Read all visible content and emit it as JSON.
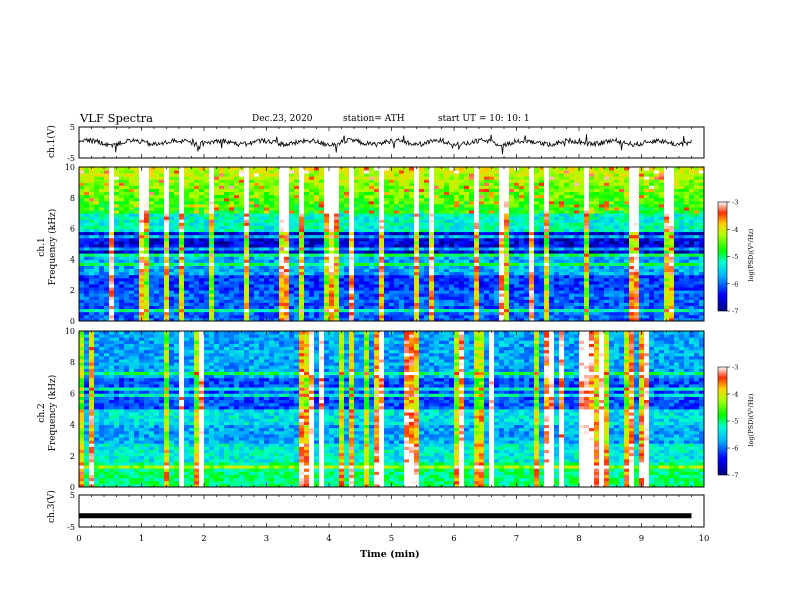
{
  "header": {
    "title": "VLF Spectra",
    "date": "Dec.23, 2020",
    "station": "station= ATH",
    "start": "start  UT =   10: 10: 1"
  },
  "chart_data": [
    {
      "type": "line",
      "ylabel": "ch.1(V)",
      "ylim": [
        -5,
        5
      ],
      "yticks": [
        "5",
        "-5"
      ],
      "xlim": [
        0,
        10
      ],
      "note": "noisy waveform around 0 V with spikes"
    },
    {
      "type": "heatmap",
      "ylabel": "ch.1\nFrequency (kHz)",
      "ylim": [
        0,
        10
      ],
      "yticks": [
        "0",
        "2",
        "4",
        "6",
        "8",
        "10"
      ],
      "xlim": [
        0,
        10
      ],
      "colorbar": {
        "label": "log(PSD)(V²/Hz)",
        "ticks": [
          "-3",
          "-4",
          "-5",
          "-6",
          "-7"
        ],
        "range": [
          -7,
          -3
        ]
      }
    },
    {
      "type": "heatmap",
      "ylabel": "ch.2\nFrequency (kHz)",
      "ylim": [
        0,
        10
      ],
      "yticks": [
        "0",
        "2",
        "4",
        "6",
        "8",
        "10"
      ],
      "xlim": [
        0,
        10
      ],
      "colorbar": {
        "label": "log(PSD)(V²/Hz)",
        "ticks": [
          "-3",
          "-4",
          "-5",
          "-6",
          "-7"
        ],
        "range": [
          -7,
          -3
        ]
      }
    },
    {
      "type": "line",
      "ylabel": "ch.3(V)",
      "ylim": [
        -5,
        5
      ],
      "yticks": [
        "5",
        "-5"
      ],
      "xlim": [
        0,
        10
      ],
      "xticks": [
        "0",
        "1",
        "2",
        "3",
        "4",
        "5",
        "6",
        "7",
        "8",
        "9",
        "10"
      ],
      "xlabel": "Time (min)",
      "note": "flat thick line near -1.5 V"
    }
  ]
}
